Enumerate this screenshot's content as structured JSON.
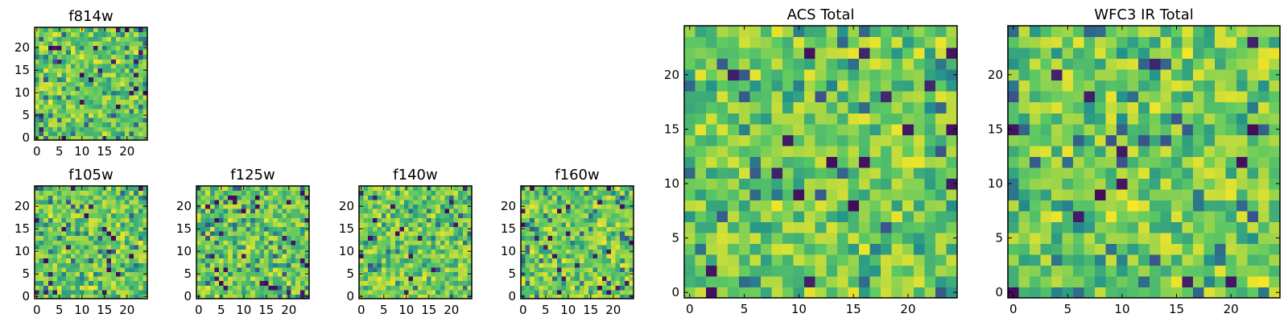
{
  "chart_data": [
    {
      "type": "heatmap",
      "title": "f814w",
      "grid_size": 25,
      "seed": 814,
      "xlim": [
        -0.5,
        24.5
      ],
      "ylim": [
        -0.5,
        24.5
      ],
      "xticks": [
        0,
        5,
        10,
        15,
        20
      ],
      "yticks": [
        0,
        5,
        10,
        15,
        20
      ],
      "xtick_labels": [
        "0",
        "5",
        "10",
        "15",
        "20"
      ],
      "ytick_labels": [
        "0",
        "5",
        "10",
        "15",
        "20"
      ]
    },
    {
      "type": "heatmap",
      "title": "f105w",
      "grid_size": 25,
      "seed": 105,
      "xlim": [
        -0.5,
        24.5
      ],
      "ylim": [
        -0.5,
        24.5
      ],
      "xticks": [
        0,
        5,
        10,
        15,
        20
      ],
      "yticks": [
        0,
        5,
        10,
        15,
        20
      ],
      "xtick_labels": [
        "0",
        "5",
        "10",
        "15",
        "20"
      ],
      "ytick_labels": [
        "0",
        "5",
        "10",
        "15",
        "20"
      ]
    },
    {
      "type": "heatmap",
      "title": "f125w",
      "grid_size": 25,
      "seed": 125,
      "xlim": [
        -0.5,
        24.5
      ],
      "ylim": [
        -0.5,
        24.5
      ],
      "xticks": [
        0,
        5,
        10,
        15,
        20
      ],
      "yticks": [
        0,
        5,
        10,
        15,
        20
      ],
      "xtick_labels": [
        "0",
        "5",
        "10",
        "15",
        "20"
      ],
      "ytick_labels": [
        "0",
        "5",
        "10",
        "15",
        "20"
      ]
    },
    {
      "type": "heatmap",
      "title": "f140w",
      "grid_size": 25,
      "seed": 140,
      "xlim": [
        -0.5,
        24.5
      ],
      "ylim": [
        -0.5,
        24.5
      ],
      "xticks": [
        0,
        5,
        10,
        15,
        20
      ],
      "yticks": [
        0,
        5,
        10,
        15,
        20
      ],
      "xtick_labels": [
        "0",
        "5",
        "10",
        "15",
        "20"
      ],
      "ytick_labels": [
        "0",
        "5",
        "10",
        "15",
        "20"
      ]
    },
    {
      "type": "heatmap",
      "title": "f160w",
      "grid_size": 25,
      "seed": 160,
      "xlim": [
        -0.5,
        24.5
      ],
      "ylim": [
        -0.5,
        24.5
      ],
      "xticks": [
        0,
        5,
        10,
        15,
        20
      ],
      "yticks": [
        0,
        5,
        10,
        15,
        20
      ],
      "xtick_labels": [
        "0",
        "5",
        "10",
        "15",
        "20"
      ],
      "ytick_labels": [
        "0",
        "5",
        "10",
        "15",
        "20"
      ]
    },
    {
      "type": "heatmap",
      "title": "ACS Total",
      "grid_size": 25,
      "seed": 7,
      "xlim": [
        -0.5,
        24.5
      ],
      "ylim": [
        -0.5,
        24.5
      ],
      "xticks": [
        0,
        5,
        10,
        15,
        20
      ],
      "yticks": [
        0,
        5,
        10,
        15,
        20
      ],
      "xtick_labels": [
        "0",
        "5",
        "10",
        "15",
        "20"
      ],
      "ytick_labels": [
        "0",
        "5",
        "10",
        "15",
        "20"
      ]
    },
    {
      "type": "heatmap",
      "title": "WFC3 IR Total",
      "grid_size": 25,
      "seed": 31,
      "xlim": [
        -0.5,
        24.5
      ],
      "ylim": [
        -0.5,
        24.5
      ],
      "xticks": [
        0,
        5,
        10,
        15,
        20
      ],
      "yticks": [
        0,
        5,
        10,
        15,
        20
      ],
      "xtick_labels": [
        "0",
        "5",
        "10",
        "15",
        "20"
      ],
      "ytick_labels": [
        "0",
        "5",
        "10",
        "15",
        "20"
      ]
    }
  ],
  "colormap": [
    "#440154",
    "#3b528b",
    "#21918c",
    "#5ec962",
    "#fde725"
  ]
}
